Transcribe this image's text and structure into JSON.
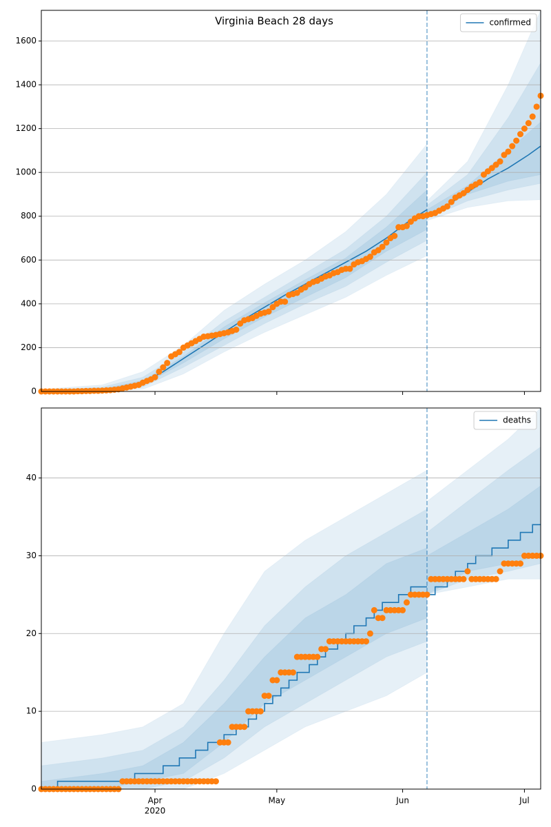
{
  "chart_data": [
    {
      "type": "line",
      "title": "Virginia Beach 28 days",
      "xlim": [
        0,
        123
      ],
      "ylim": [
        0,
        1740
      ],
      "xticks": [
        28,
        58,
        89,
        119
      ],
      "yticks": [
        0,
        200,
        400,
        600,
        800,
        1000,
        1200,
        1400,
        1600
      ],
      "grid": true,
      "legend": "upper right",
      "vline": 95,
      "series": [
        {
          "name": "confirmed",
          "color": "#1f77b4",
          "x": [
            0,
            14,
            20,
            25,
            30,
            35,
            40,
            45,
            50,
            55,
            60,
            65,
            70,
            75,
            80,
            85,
            90,
            95,
            95,
            95,
            100,
            105,
            110,
            115,
            120,
            123
          ],
          "values": [
            0,
            5,
            15,
            40,
            90,
            150,
            210,
            270,
            330,
            385,
            440,
            490,
            540,
            590,
            640,
            700,
            770,
            830,
            null,
            800,
            850,
            910,
            970,
            1020,
            1080,
            1120
          ]
        }
      ],
      "bands": {
        "color": "#1f77b4",
        "x": [
          0,
          15,
          25,
          35,
          45,
          55,
          65,
          75,
          85,
          95,
          95,
          105,
          115,
          123
        ],
        "levels": [
          {
            "upper": [
              10,
              30,
              90,
              210,
              370,
              490,
              600,
              730,
              900,
              1130,
              870,
              1050,
              1400,
              1740
            ],
            "lower": [
              0,
              0,
              10,
              80,
              180,
              270,
              350,
              430,
              530,
              620,
              780,
              840,
              870,
              875
            ]
          },
          {
            "upper": [
              5,
              20,
              65,
              180,
              320,
              430,
              540,
              650,
              800,
              1000,
              850,
              990,
              1250,
              1500
            ],
            "lower": [
              0,
              0,
              20,
              110,
              210,
              310,
              400,
              480,
              590,
              690,
              790,
              870,
              920,
              950
            ]
          },
          {
            "upper": [
              2,
              12,
              50,
              160,
              295,
              405,
              510,
              610,
              750,
              920,
              830,
              940,
              1100,
              1230
            ],
            "lower": [
              0,
              2,
              30,
              130,
              240,
              340,
              430,
              520,
              640,
              740,
              800,
              900,
              960,
              990
            ]
          }
        ]
      },
      "observed": {
        "color": "#ff7f0e",
        "x": [
          0,
          1,
          2,
          3,
          4,
          5,
          6,
          7,
          8,
          9,
          10,
          11,
          12,
          13,
          14,
          15,
          16,
          17,
          18,
          19,
          20,
          21,
          22,
          23,
          24,
          25,
          26,
          27,
          28,
          29,
          30,
          31,
          32,
          33,
          34,
          35,
          36,
          37,
          38,
          39,
          40,
          41,
          42,
          43,
          44,
          45,
          46,
          47,
          48,
          49,
          50,
          51,
          52,
          53,
          54,
          55,
          56,
          57,
          58,
          59,
          60,
          61,
          62,
          63,
          64,
          65,
          66,
          67,
          68,
          69,
          70,
          71,
          72,
          73,
          74,
          75,
          76,
          77,
          78,
          79,
          80,
          81,
          82,
          83,
          84,
          85,
          86,
          87,
          88,
          89,
          90,
          91,
          92,
          93,
          94,
          95,
          96,
          97,
          98,
          99,
          100,
          101,
          102,
          103,
          104,
          105,
          106,
          107,
          108,
          109,
          110,
          111,
          112,
          113,
          114,
          115,
          116,
          117,
          118,
          119,
          120,
          121,
          122,
          123
        ],
        "values": [
          0,
          0,
          0,
          0,
          0,
          0,
          0,
          0,
          0,
          1,
          1,
          2,
          2,
          3,
          3,
          4,
          5,
          6,
          8,
          10,
          14,
          18,
          22,
          26,
          30,
          40,
          48,
          55,
          65,
          90,
          110,
          130,
          160,
          170,
          180,
          200,
          210,
          220,
          230,
          240,
          250,
          252,
          255,
          258,
          262,
          266,
          270,
          276,
          282,
          310,
          325,
          330,
          335,
          345,
          355,
          360,
          365,
          385,
          400,
          410,
          410,
          440,
          445,
          450,
          465,
          475,
          490,
          500,
          505,
          515,
          525,
          530,
          540,
          545,
          555,
          560,
          560,
          580,
          590,
          595,
          605,
          615,
          635,
          645,
          660,
          680,
          700,
          710,
          750,
          750,
          755,
          775,
          790,
          800,
          800,
          805,
          810,
          815,
          825,
          835,
          845,
          865,
          885,
          895,
          905,
          920,
          935,
          945,
          955,
          990,
          1005,
          1020,
          1035,
          1050,
          1080,
          1095,
          1120,
          1145,
          1175,
          1200,
          1225,
          1255,
          1300,
          1350
        ]
      }
    },
    {
      "type": "line",
      "xlim": [
        0,
        123
      ],
      "ylim": [
        0,
        49
      ],
      "xticks": [
        {
          "value": 28,
          "label": "Apr"
        },
        {
          "value": 58,
          "label": "May"
        },
        {
          "value": 89,
          "label": "Jun"
        },
        {
          "value": 119,
          "label": "Jul"
        }
      ],
      "x_year_label": "2020",
      "yticks": [
        0,
        10,
        20,
        30,
        40
      ],
      "grid": true,
      "legend": "upper right",
      "vline": 95,
      "series": [
        {
          "name": "deaths",
          "color": "#1f77b4",
          "drawstyle": "steps-post",
          "x": [
            0,
            4,
            23,
            30,
            34,
            38,
            41,
            45,
            48,
            51,
            53,
            55,
            57,
            59,
            61,
            63,
            66,
            68,
            70,
            73,
            75,
            77,
            80,
            82,
            84,
            88,
            91,
            95,
            95,
            95,
            97,
            100,
            102,
            105,
            107,
            111,
            115,
            118,
            121,
            123
          ],
          "values": [
            0,
            1,
            2,
            3,
            4,
            5,
            6,
            7,
            8,
            9,
            10,
            11,
            12,
            13,
            14,
            15,
            16,
            17,
            18,
            19,
            20,
            21,
            22,
            23,
            24,
            25,
            26,
            26,
            null,
            25,
            26,
            27,
            28,
            29,
            30,
            31,
            32,
            33,
            34,
            34
          ]
        }
      ],
      "bands": {
        "color": "#1f77b4",
        "x": [
          0,
          15,
          25,
          35,
          45,
          55,
          65,
          75,
          85,
          95,
          95,
          105,
          115,
          123
        ],
        "levels": [
          {
            "upper": [
              6,
              7,
              8,
              11,
              20,
              28,
              32,
              35,
              38,
              41,
              37,
              41,
              45,
              49
            ],
            "lower": [
              0,
              0,
              0,
              0,
              2,
              5,
              8,
              10,
              12,
              15,
              25,
              26,
              27,
              27
            ]
          },
          {
            "upper": [
              3,
              4,
              5,
              8,
              14,
              21,
              26,
              30,
              33,
              36,
              33,
              37,
              41,
              44
            ],
            "lower": [
              0,
              0,
              0,
              1,
              4,
              8,
              11,
              14,
              17,
              19,
              25,
              27,
              28,
              29
            ]
          },
          {
            "upper": [
              1,
              2,
              3,
              6,
              11,
              17,
              22,
              25,
              29,
              31,
              30,
              33,
              36,
              39
            ],
            "lower": [
              0,
              0,
              1,
              2,
              6,
              11,
              14,
              17,
              20,
              22,
              25,
              28,
              29,
              30
            ]
          }
        ]
      },
      "observed": {
        "color": "#ff7f0e",
        "x": [
          0,
          1,
          2,
          3,
          4,
          5,
          6,
          7,
          8,
          9,
          10,
          11,
          12,
          13,
          14,
          15,
          16,
          17,
          18,
          19,
          20,
          21,
          22,
          23,
          24,
          25,
          26,
          27,
          28,
          29,
          30,
          31,
          32,
          33,
          34,
          35,
          36,
          37,
          38,
          39,
          40,
          41,
          42,
          43,
          44,
          45,
          46,
          47,
          48,
          49,
          50,
          51,
          52,
          53,
          54,
          55,
          56,
          57,
          58,
          59,
          60,
          61,
          62,
          63,
          64,
          65,
          66,
          67,
          68,
          69,
          70,
          71,
          72,
          73,
          74,
          75,
          76,
          77,
          78,
          79,
          80,
          81,
          82,
          83,
          84,
          85,
          86,
          87,
          88,
          89,
          90,
          91,
          92,
          93,
          94,
          95,
          96,
          97,
          98,
          99,
          100,
          101,
          102,
          103,
          104,
          105,
          106,
          107,
          108,
          109,
          110,
          111,
          112,
          113,
          114,
          115,
          116,
          117,
          118,
          119,
          120,
          121,
          122,
          123
        ],
        "values": [
          0,
          0,
          0,
          0,
          0,
          0,
          0,
          0,
          0,
          0,
          0,
          0,
          0,
          0,
          0,
          0,
          0,
          0,
          0,
          0,
          1,
          1,
          1,
          1,
          1,
          1,
          1,
          1,
          1,
          1,
          1,
          1,
          1,
          1,
          1,
          1,
          1,
          1,
          1,
          1,
          1,
          1,
          1,
          1,
          6,
          6,
          6,
          8,
          8,
          8,
          8,
          10,
          10,
          10,
          10,
          12,
          12,
          14,
          14,
          15,
          15,
          15,
          15,
          17,
          17,
          17,
          17,
          17,
          17,
          18,
          18,
          19,
          19,
          19,
          19,
          19,
          19,
          19,
          19,
          19,
          19,
          20,
          23,
          22,
          22,
          23,
          23,
          23,
          23,
          23,
          24,
          25,
          25,
          25,
          25,
          25,
          27,
          27,
          27,
          27,
          27,
          27,
          27,
          27,
          27,
          28,
          27,
          27,
          27,
          27,
          27,
          27,
          27,
          28,
          29,
          29,
          29,
          29,
          29,
          30,
          30,
          30,
          30,
          30
        ]
      }
    }
  ]
}
